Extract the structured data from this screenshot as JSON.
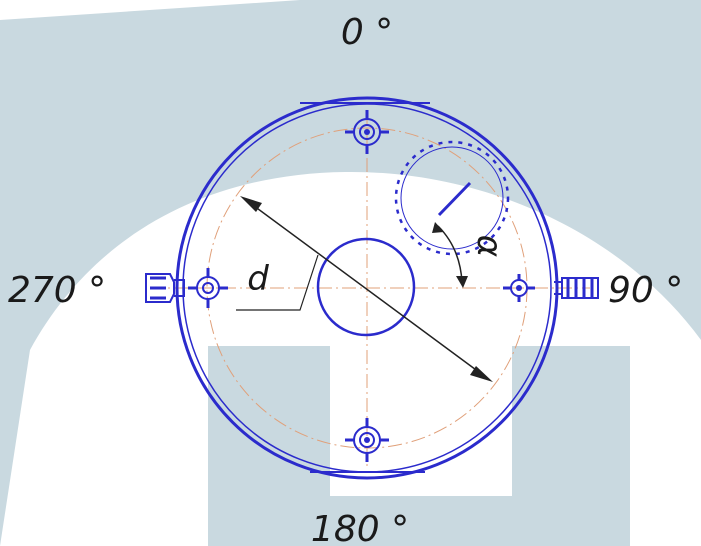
{
  "labels": {
    "top": "0 °",
    "right": "90 °",
    "bottom": "180 °",
    "left": "270 °",
    "diameter": "d",
    "angle": "α"
  },
  "colors": {
    "background_shape": "#c9d9e0",
    "drawing_line": "#2b2bcc",
    "center_line": "#e0a07a",
    "text": "#1a1a1a",
    "dimension_line": "#222222"
  },
  "icons": {
    "nozzle": "flange-nozzle-icon",
    "side_fitting": "side-fitting-icon"
  }
}
